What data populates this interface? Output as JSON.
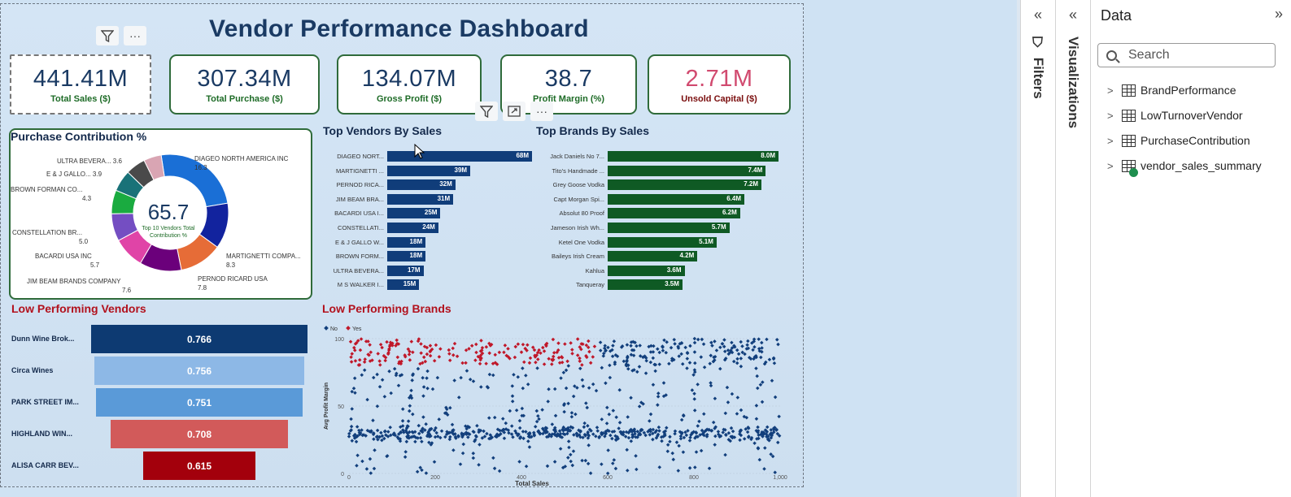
{
  "dashboard": {
    "title": "Vendor Performance Dashboard",
    "kpis": [
      {
        "value": "441.41M",
        "label": "Total Sales ($)"
      },
      {
        "value": "307.34M",
        "label": "Total Purchase ($)"
      },
      {
        "value": "134.07M",
        "label": "Gross Profit ($)"
      },
      {
        "value": "38.7",
        "label": "Profit Margin (%)"
      },
      {
        "value": "2.71M",
        "label": "Unsold Capital ($)"
      }
    ],
    "purchase_contribution": {
      "title": "Purchase Contribution %",
      "center_value": "65.7",
      "center_caption": "Top 10 Vendors Total Contribution %",
      "slices": [
        {
          "name": "DIAGEO NORTH AMERICA INC",
          "value": "16.3",
          "pct": 16.3,
          "color": "#1a6fd6"
        },
        {
          "name": "MARTIGNETTI COMPA...",
          "value": "8.3",
          "pct": 8.3,
          "color": "#12239e"
        },
        {
          "name": "PERNOD RICARD USA",
          "value": "7.8",
          "pct": 7.8,
          "color": "#e66c37"
        },
        {
          "name": "JIM BEAM BRANDS COMPANY",
          "value": "7.6",
          "pct": 7.6,
          "color": "#6b007b"
        },
        {
          "name": "BACARDI USA INC",
          "value": "5.7",
          "pct": 5.7,
          "color": "#e044a7"
        },
        {
          "name": "CONSTELLATION BR...",
          "value": "5.0",
          "pct": 5.0,
          "color": "#744ec2"
        },
        {
          "name": "BROWN FORMAN CO...",
          "value": "4.3",
          "pct": 4.3,
          "color": "#1aab40"
        },
        {
          "name": "E & J GALLO...",
          "value": "3.9",
          "pct": 3.9,
          "color": "#197278"
        },
        {
          "name": "ULTRA BEVERA...",
          "value": "3.6",
          "pct": 3.6,
          "color": "#4a4a4a"
        },
        {
          "name": "",
          "value": "",
          "pct": 3.2,
          "color": "#d9a5b3"
        }
      ]
    },
    "top_vendors": {
      "title": "Top Vendors By Sales",
      "color": "#103d7a",
      "rows": [
        {
          "name": "DIAGEO NORT...",
          "value": 68,
          "label": "68M"
        },
        {
          "name": "MARTIGNETTI ...",
          "value": 39,
          "label": "39M"
        },
        {
          "name": "PERNOD RICA...",
          "value": 32,
          "label": "32M"
        },
        {
          "name": "JIM BEAM BRA...",
          "value": 31,
          "label": "31M"
        },
        {
          "name": "BACARDI USA I...",
          "value": 25,
          "label": "25M"
        },
        {
          "name": "CONSTELLATI...",
          "value": 24,
          "label": "24M"
        },
        {
          "name": "E & J GALLO W...",
          "value": 18,
          "label": "18M"
        },
        {
          "name": "BROWN FORM...",
          "value": 18,
          "label": "18M"
        },
        {
          "name": "ULTRA BEVERA...",
          "value": 17,
          "label": "17M"
        },
        {
          "name": "M S WALKER I...",
          "value": 15,
          "label": "15M"
        }
      ]
    },
    "top_brands": {
      "title": "Top Brands By Sales",
      "color": "#0f5a24",
      "rows": [
        {
          "name": "Jack Daniels No 7...",
          "value": 8.0,
          "label": "8.0M"
        },
        {
          "name": "Tito's Handmade ...",
          "value": 7.4,
          "label": "7.4M"
        },
        {
          "name": "Grey Goose Vodka",
          "value": 7.2,
          "label": "7.2M"
        },
        {
          "name": "Capt Morgan Spi...",
          "value": 6.4,
          "label": "6.4M"
        },
        {
          "name": "Absolut 80 Proof",
          "value": 6.2,
          "label": "6.2M"
        },
        {
          "name": "Jameson Irish Wh...",
          "value": 5.7,
          "label": "5.7M"
        },
        {
          "name": "Ketel One Vodka",
          "value": 5.1,
          "label": "5.1M"
        },
        {
          "name": "Baileys Irish Cream",
          "value": 4.2,
          "label": "4.2M"
        },
        {
          "name": "Kahlua",
          "value": 3.6,
          "label": "3.6M"
        },
        {
          "name": "Tanqueray",
          "value": 3.5,
          "label": "3.5M"
        }
      ]
    },
    "low_vendors": {
      "title": "Low Performing Vendors",
      "rows": [
        {
          "name": "Dunn Wine Brok...",
          "value": 0.766,
          "label": "0.766",
          "color": "#0d3a72"
        },
        {
          "name": "Circa Wines",
          "value": 0.756,
          "label": "0.756",
          "color": "#8db8e6"
        },
        {
          "name": "PARK STREET IM...",
          "value": 0.751,
          "label": "0.751",
          "color": "#5a9ad8"
        },
        {
          "name": "HIGHLAND WIN...",
          "value": 0.708,
          "label": "0.708",
          "color": "#d25a5a"
        },
        {
          "name": "ALISA CARR BEV...",
          "value": 0.615,
          "label": "0.615",
          "color": "#a3000c"
        }
      ]
    },
    "low_brands": {
      "title": "Low Performing Brands",
      "legend": [
        "No",
        "Yes"
      ]
    }
  },
  "chart_data": [
    {
      "type": "pie",
      "title": "Purchase Contribution %",
      "categories": [
        "DIAGEO NORTH AMERICA INC",
        "MARTIGNETTI COMPA...",
        "PERNOD RICARD USA",
        "JIM BEAM BRANDS COMPANY",
        "BACARDI USA INC",
        "CONSTELLATION BR...",
        "BROWN FORMAN CO...",
        "E & J GALLO...",
        "ULTRA BEVERA..."
      ],
      "values": [
        16.3,
        8.3,
        7.8,
        7.6,
        5.7,
        5.0,
        4.3,
        3.9,
        3.6
      ]
    },
    {
      "type": "bar",
      "title": "Top Vendors By Sales",
      "categories": [
        "DIAGEO NORT...",
        "MARTIGNETTI ...",
        "PERNOD RICA...",
        "JIM BEAM BRA...",
        "BACARDI USA I...",
        "CONSTELLATI...",
        "E & J GALLO W...",
        "BROWN FORM...",
        "ULTRA BEVERA...",
        "M S WALKER I..."
      ],
      "values": [
        68,
        39,
        32,
        31,
        25,
        24,
        18,
        18,
        17,
        15
      ]
    },
    {
      "type": "bar",
      "title": "Top Brands By Sales",
      "categories": [
        "Jack Daniels No 7...",
        "Tito's Handmade ...",
        "Grey Goose Vodka",
        "Capt Morgan Spi...",
        "Absolut 80 Proof",
        "Jameson Irish Wh...",
        "Ketel One Vodka",
        "Baileys Irish Cream",
        "Kahlua",
        "Tanqueray"
      ],
      "values": [
        8.0,
        7.4,
        7.2,
        6.4,
        6.2,
        5.7,
        5.1,
        4.2,
        3.6,
        3.5
      ]
    },
    {
      "type": "bar",
      "title": "Low Performing Vendors",
      "categories": [
        "Dunn Wine Brok...",
        "Circa Wines",
        "PARK STREET IM...",
        "HIGHLAND WIN...",
        "ALISA CARR BEV..."
      ],
      "values": [
        0.766,
        0.756,
        0.751,
        0.708,
        0.615
      ]
    },
    {
      "type": "scatter",
      "title": "Low Performing Brands",
      "xlabel": "Total Sales",
      "ylabel": "Avg Profit Margin",
      "xlim": [
        0,
        1000
      ],
      "ylim": [
        0,
        100
      ],
      "x_ticks": [
        "0",
        "200",
        "400",
        "600",
        "800",
        "1,000"
      ],
      "y_ticks": [
        "0",
        "50",
        "100"
      ],
      "series": [
        {
          "name": "No",
          "color": "#123f7c",
          "x_range": [
            0,
            1000
          ],
          "y_range": [
            0,
            80
          ]
        },
        {
          "name": "Yes",
          "color": "#c0182a",
          "x_range": [
            0,
            570
          ],
          "y_range": [
            80,
            100
          ]
        }
      ]
    }
  ],
  "panes": {
    "filters_label": "Filters",
    "visualizations_label": "Visualizations",
    "data": {
      "title": "Data",
      "search_placeholder": "Search",
      "tables": [
        {
          "name": "BrandPerformance"
        },
        {
          "name": "LowTurnoverVendor"
        },
        {
          "name": "PurchaseContribution"
        },
        {
          "name": "vendor_sales_summary"
        }
      ]
    }
  }
}
